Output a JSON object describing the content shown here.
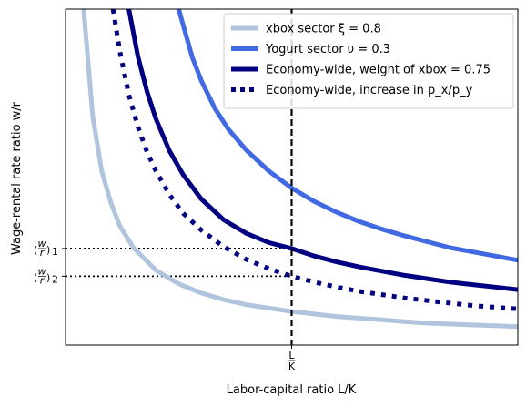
{
  "chart_data": {
    "type": "line",
    "xlabel": "Labor-capital ratio L/K",
    "ylabel": "Wage-rental rate ratio w/r",
    "xlim": [
      0.0,
      1.0
    ],
    "ylim": [
      0.0,
      4.0
    ],
    "grid": false,
    "legend_position": "top-right",
    "x_ticks": [
      {
        "x": 0.5,
        "label": "L/K"
      }
    ],
    "y_ticks": [
      {
        "y": 1.15,
        "label": "(w/r)_1"
      },
      {
        "y": 0.82,
        "label": "(w/r)_2"
      }
    ],
    "vertical_line": {
      "x": 0.5,
      "style": "dashed",
      "color": "#000000"
    },
    "horizontal_guides": [
      {
        "y": 1.15,
        "x_from": 0.0,
        "x_to": 0.5,
        "style": "dotted"
      },
      {
        "y": 0.82,
        "x_from": 0.0,
        "x_to": 0.5,
        "style": "dotted"
      }
    ],
    "series": [
      {
        "name": "xbox sector ξ = 0.8",
        "color": "#b0c4de",
        "style": "solid",
        "x": [
          0.04,
          0.06,
          0.08,
          0.1,
          0.12,
          0.15,
          0.2,
          0.25,
          0.3,
          0.35,
          0.4,
          0.45,
          0.5,
          0.55,
          0.6,
          0.65,
          0.7,
          0.75,
          0.8,
          0.85,
          0.9,
          0.95,
          1.0
        ],
        "y": [
          4.0,
          2.73,
          2.07,
          1.7,
          1.42,
          1.16,
          0.89,
          0.73,
          0.62,
          0.54,
          0.48,
          0.44,
          0.4,
          0.37,
          0.34,
          0.32,
          0.3,
          0.28,
          0.26,
          0.25,
          0.24,
          0.23,
          0.22
        ]
      },
      {
        "name": "Yogurt sector υ = 0.3",
        "color": "#4169e1",
        "style": "solid",
        "x": [
          0.25,
          0.28,
          0.3,
          0.33,
          0.36,
          0.4,
          0.45,
          0.5,
          0.55,
          0.6,
          0.65,
          0.7,
          0.75,
          0.8,
          0.85,
          0.9,
          0.95,
          1.0
        ],
        "y": [
          4.0,
          3.43,
          3.15,
          2.82,
          2.57,
          2.32,
          2.07,
          1.87,
          1.71,
          1.58,
          1.47,
          1.38,
          1.3,
          1.23,
          1.16,
          1.11,
          1.06,
          1.01
        ]
      },
      {
        "name": "Economy-wide, weight of xbox = 0.75",
        "color": "#000080",
        "style": "solid",
        "x": [
          0.14,
          0.16,
          0.18,
          0.2,
          0.23,
          0.26,
          0.3,
          0.35,
          0.4,
          0.45,
          0.5,
          0.55,
          0.6,
          0.65,
          0.7,
          0.75,
          0.8,
          0.85,
          0.9,
          0.95,
          1.0
        ],
        "y": [
          4.0,
          3.44,
          3.02,
          2.69,
          2.31,
          2.03,
          1.74,
          1.49,
          1.33,
          1.22,
          1.15,
          1.06,
          0.99,
          0.93,
          0.88,
          0.83,
          0.79,
          0.75,
          0.72,
          0.69,
          0.66
        ]
      },
      {
        "name": "Economy-wide, increase in p_x/p_y",
        "color": "#000080",
        "style": "dotted",
        "x": [
          0.105,
          0.12,
          0.14,
          0.16,
          0.18,
          0.2,
          0.23,
          0.26,
          0.3,
          0.35,
          0.4,
          0.45,
          0.5,
          0.55,
          0.6,
          0.65,
          0.7,
          0.75,
          0.8,
          0.85,
          0.9,
          0.95,
          1.0
        ],
        "y": [
          4.0,
          3.5,
          2.98,
          2.6,
          2.3,
          2.07,
          1.79,
          1.57,
          1.37,
          1.17,
          1.02,
          0.91,
          0.82,
          0.75,
          0.69,
          0.64,
          0.6,
          0.56,
          0.53,
          0.5,
          0.47,
          0.45,
          0.43
        ]
      }
    ]
  }
}
